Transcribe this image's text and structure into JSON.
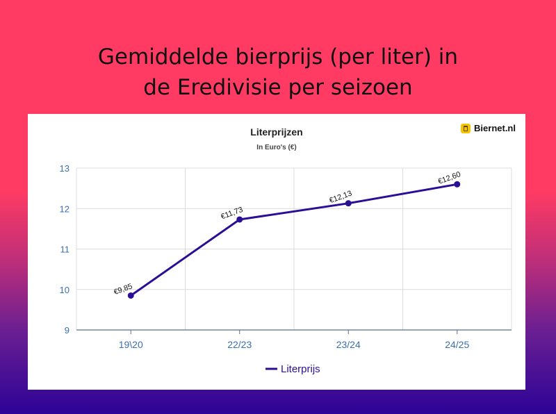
{
  "page": {
    "title_line1": "Gemiddelde bierprijs (per liter) in",
    "title_line2": "de Eredivisie per seizoen"
  },
  "brand": {
    "name": "Biernet.nl",
    "icon": "beer-glass-icon",
    "icon_color": "#f5c400"
  },
  "colors": {
    "background_top": "#ff3b63",
    "background_bottom": "#2c0396",
    "series": "#2a0f96",
    "axis_text": "#3a6fb0"
  },
  "chart_data": {
    "type": "line",
    "title": "Literprijzen",
    "subtitle": "In Euro's (€)",
    "categories": [
      "19\\20",
      "22/23",
      "23/24",
      "24/25"
    ],
    "series": [
      {
        "name": "Literprijs",
        "values": [
          9.85,
          11.73,
          12.13,
          12.6
        ],
        "data_labels": [
          "€9,85",
          "€11,73",
          "€12,13",
          "€12,60"
        ]
      }
    ],
    "ylim": [
      9,
      13
    ],
    "yticks": [
      "9",
      "10",
      "11",
      "12",
      "13"
    ],
    "xlabel": "",
    "ylabel": "",
    "grid": true,
    "legend": "bottom-center"
  }
}
